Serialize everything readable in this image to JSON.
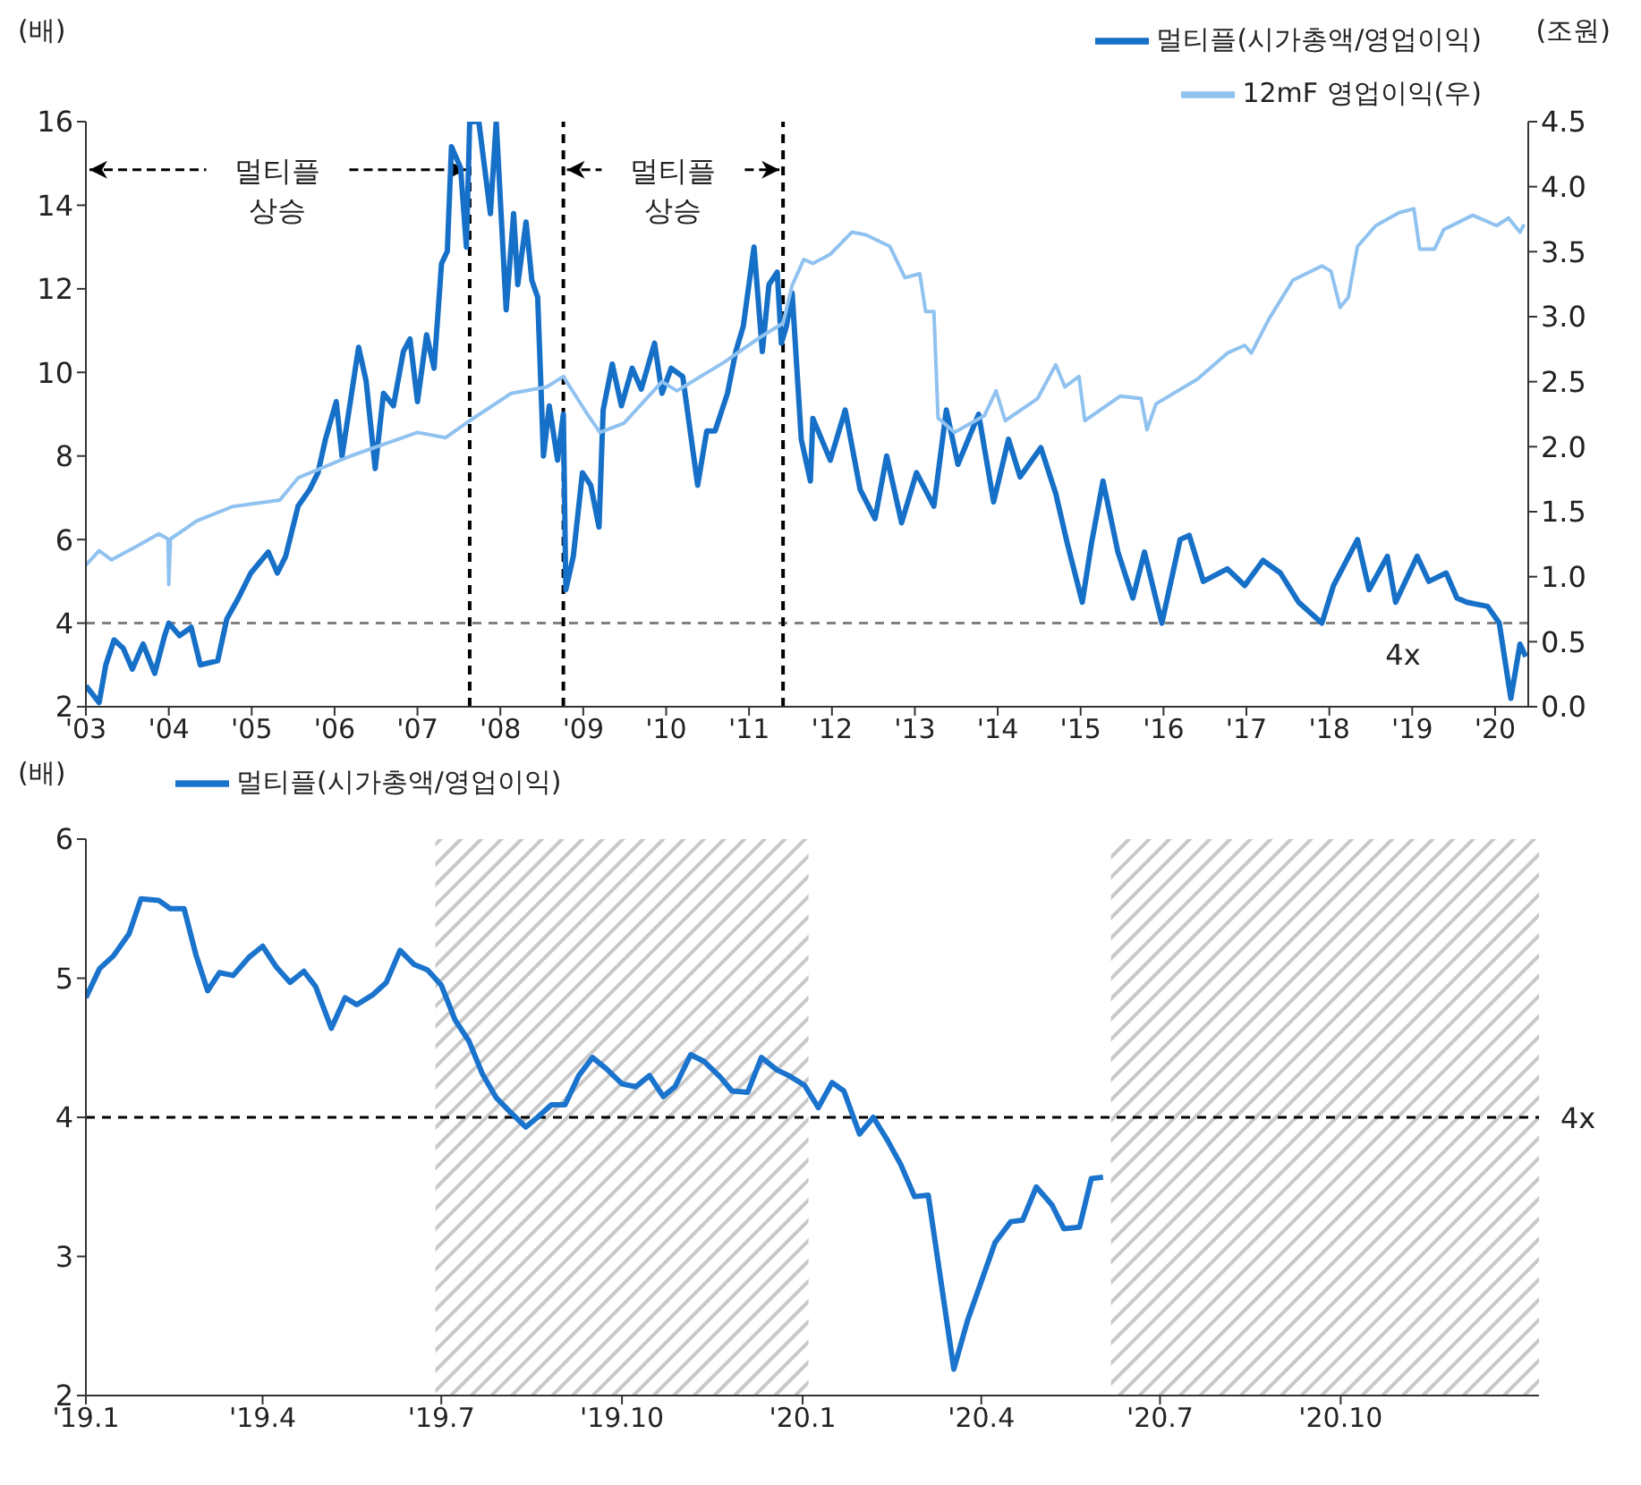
{
  "chart_data": [
    {
      "type": "line",
      "ylabel": "(배)",
      "y2label": "(조원)",
      "legend": "top right",
      "marker": "none",
      "line_style": "solid",
      "grid": false,
      "xlim": [
        2003,
        2020.4
      ],
      "xticks": [
        {
          "value": 2003,
          "label": "'03"
        },
        {
          "value": 2004,
          "label": "'04"
        },
        {
          "value": 2005,
          "label": "'05"
        },
        {
          "value": 2006,
          "label": "'06"
        },
        {
          "value": 2007,
          "label": "'07"
        },
        {
          "value": 2008,
          "label": "'08"
        },
        {
          "value": 2009,
          "label": "'09"
        },
        {
          "value": 2010,
          "label": "'10"
        },
        {
          "value": 2011,
          "label": "'11"
        },
        {
          "value": 2012,
          "label": "'12"
        },
        {
          "value": 2013,
          "label": "'13"
        },
        {
          "value": 2014,
          "label": "'14"
        },
        {
          "value": 2015,
          "label": "'15"
        },
        {
          "value": 2016,
          "label": "'16"
        },
        {
          "value": 2017,
          "label": "'17"
        },
        {
          "value": 2018,
          "label": "'18"
        },
        {
          "value": 2019,
          "label": "'19"
        },
        {
          "value": 2020,
          "label": "'20"
        }
      ],
      "ylim": [
        2,
        16
      ],
      "yticks": [
        2,
        4,
        6,
        8,
        10,
        12,
        14,
        16
      ],
      "y2lim": [
        0,
        4.5
      ],
      "y2ticks": [
        {
          "value": 0,
          "label": "0.0"
        },
        {
          "value": 0.5,
          "label": "0.5"
        },
        {
          "value": 1,
          "label": "1.0"
        },
        {
          "value": 1.5,
          "label": "1.5"
        },
        {
          "value": 2,
          "label": "2.0"
        },
        {
          "value": 2.5,
          "label": "2.5"
        },
        {
          "value": 3,
          "label": "3.0"
        },
        {
          "value": 3.5,
          "label": "3.5"
        },
        {
          "value": 4,
          "label": "4.0"
        },
        {
          "value": 4.5,
          "label": "4.5"
        }
      ],
      "series": [
        {
          "name": "멀티플(시가총액/영업이익)",
          "color": "#1670c8",
          "x": [
            2003.0,
            2003.16,
            2003.24,
            2003.34,
            2003.45,
            2003.56,
            2003.69,
            2003.83,
            2003.95,
            2004.0,
            2004.13,
            2004.27,
            2004.38,
            2004.59,
            2004.7,
            2004.84,
            2004.99,
            2005.2,
            2005.31,
            2005.41,
            2005.56,
            2005.7,
            2005.8,
            2005.89,
            2006.02,
            2006.09,
            2006.29,
            2006.38,
            2006.49,
            2006.59,
            2006.71,
            2006.83,
            2006.91,
            2007.0,
            2007.11,
            2007.2,
            2007.29,
            2007.36,
            2007.41,
            2007.52,
            2007.59,
            2007.63,
            2007.74,
            2007.88,
            2007.95,
            2008.07,
            2008.16,
            2008.21,
            2008.31,
            2008.38,
            2008.45,
            2008.52,
            2008.59,
            2008.69,
            2008.76,
            2008.79,
            2008.88,
            2008.99,
            2009.09,
            2009.19,
            2009.24,
            2009.35,
            2009.46,
            2009.59,
            2009.7,
            2009.86,
            2009.95,
            2010.06,
            2010.2,
            2010.38,
            2010.49,
            2010.59,
            2010.74,
            2010.84,
            2010.93,
            2011.06,
            2011.16,
            2011.24,
            2011.34,
            2011.39,
            2011.45,
            2011.52,
            2011.63,
            2011.74,
            2011.77,
            2011.98,
            2012.16,
            2012.34,
            2012.52,
            2012.66,
            2012.84,
            2013.02,
            2013.23,
            2013.38,
            2013.52,
            2013.77,
            2013.95,
            2014.13,
            2014.27,
            2014.52,
            2014.7,
            2014.84,
            2015.02,
            2015.13,
            2015.27,
            2015.45,
            2015.63,
            2015.77,
            2015.98,
            2016.2,
            2016.31,
            2016.48,
            2016.77,
            2016.98,
            2017.2,
            2017.41,
            2017.63,
            2017.91,
            2018.05,
            2018.34,
            2018.48,
            2018.7,
            2018.8,
            2019.06,
            2019.2,
            2019.41,
            2019.54,
            2019.66,
            2019.91,
            2020.05,
            2020.19,
            2020.3,
            2020.37
          ],
          "values": [
            2.5,
            2.1,
            3.0,
            3.6,
            3.4,
            2.9,
            3.5,
            2.8,
            3.7,
            4.0,
            3.7,
            3.9,
            3.0,
            3.1,
            4.1,
            4.6,
            5.2,
            5.7,
            5.2,
            5.6,
            6.8,
            7.2,
            7.6,
            8.4,
            9.3,
            8.0,
            10.6,
            9.8,
            7.7,
            9.5,
            9.2,
            10.5,
            10.8,
            9.3,
            10.9,
            10.1,
            12.6,
            12.9,
            15.4,
            14.9,
            13.0,
            16,
            16,
            13.8,
            16,
            11.5,
            13.8,
            12.1,
            13.6,
            12.2,
            11.8,
            8.0,
            9.2,
            7.9,
            9.0,
            4.8,
            5.6,
            7.6,
            7.3,
            6.3,
            9.1,
            10.2,
            9.2,
            10.1,
            9.6,
            10.7,
            9.5,
            10.1,
            9.9,
            7.3,
            8.6,
            8.6,
            9.5,
            10.5,
            11.1,
            13.0,
            10.5,
            12.1,
            12.4,
            10.7,
            11.1,
            11.9,
            8.4,
            7.4,
            8.9,
            7.9,
            9.1,
            7.2,
            6.5,
            8.0,
            6.4,
            7.6,
            6.8,
            9.1,
            7.8,
            9.0,
            6.9,
            8.4,
            7.5,
            8.2,
            7.1,
            5.9,
            4.5,
            5.9,
            7.4,
            5.7,
            4.6,
            5.7,
            4.0,
            6.0,
            6.1,
            5.0,
            5.3,
            4.9,
            5.5,
            5.2,
            4.5,
            4.0,
            4.9,
            6.0,
            4.8,
            5.6,
            4.5,
            5.6,
            5.0,
            5.2,
            4.6,
            4.5,
            4.4,
            4.0,
            2.2,
            3.5,
            3.2
          ]
        },
        {
          "name": "12mF 영업이익(우)",
          "color": "#90c2f0",
          "axis": "y2",
          "x": [
            2003.0,
            2003.16,
            2003.31,
            2003.63,
            2003.88,
            2003.99,
            2004.0,
            2004.02,
            2004.34,
            2004.77,
            2005.34,
            2005.56,
            2006.2,
            2007.0,
            2007.34,
            2007.63,
            2008.13,
            2008.56,
            2008.76,
            2009.06,
            2009.2,
            2009.49,
            2009.95,
            2010.13,
            2010.7,
            2011.13,
            2011.41,
            2011.52,
            2011.66,
            2011.77,
            2011.98,
            2012.24,
            2012.41,
            2012.7,
            2012.88,
            2013.06,
            2013.13,
            2013.23,
            2013.28,
            2013.48,
            2013.84,
            2013.98,
            2014.09,
            2014.48,
            2014.7,
            2014.81,
            2014.98,
            2015.05,
            2015.48,
            2015.73,
            2015.8,
            2015.91,
            2016.41,
            2016.77,
            2016.98,
            2017.06,
            2017.27,
            2017.56,
            2017.91,
            2018.02,
            2018.13,
            2018.23,
            2018.34,
            2018.56,
            2018.84,
            2019.02,
            2019.09,
            2019.27,
            2019.38,
            2019.73,
            2020.02,
            2020.16,
            2020.3,
            2020.35
          ],
          "values": [
            1.09,
            1.2,
            1.13,
            1.24,
            1.33,
            1.29,
            0.94,
            1.29,
            1.43,
            1.54,
            1.59,
            1.76,
            1.93,
            2.11,
            2.07,
            2.2,
            2.41,
            2.46,
            2.54,
            2.24,
            2.11,
            2.18,
            2.5,
            2.43,
            2.65,
            2.84,
            2.95,
            3.24,
            3.44,
            3.41,
            3.48,
            3.65,
            3.63,
            3.54,
            3.3,
            3.33,
            3.04,
            3.04,
            2.22,
            2.11,
            2.24,
            2.43,
            2.2,
            2.37,
            2.63,
            2.46,
            2.54,
            2.2,
            2.39,
            2.37,
            2.13,
            2.33,
            2.52,
            2.72,
            2.78,
            2.72,
            2.98,
            3.28,
            3.39,
            3.35,
            3.07,
            3.15,
            3.54,
            3.7,
            3.8,
            3.83,
            3.52,
            3.52,
            3.67,
            3.78,
            3.7,
            3.76,
            3.65,
            3.71
          ]
        }
      ],
      "ref_lines": [
        {
          "axis": "y",
          "value": 4,
          "label": "4x",
          "color": "#808080",
          "line_style": "dashed"
        },
        {
          "axis": "x",
          "value": 2007.63,
          "color": "#000000",
          "line_style": "dashed"
        },
        {
          "axis": "x",
          "value": 2008.76,
          "color": "#000000",
          "line_style": "dashed"
        },
        {
          "axis": "x",
          "value": 2011.41,
          "color": "#000000",
          "line_style": "dashed"
        }
      ],
      "annotations": [
        {
          "text": "멀티플\n상승",
          "x": 2007.63,
          "y": 14.85
        },
        {
          "text": "멀티플\n상승",
          "x": 2011.41,
          "y": 14.85
        }
      ]
    },
    {
      "type": "line",
      "ylabel": "(배)",
      "legend": "top left",
      "marker": "none",
      "line_style": "solid",
      "grid": false,
      "xlim": [
        "2019-01-01",
        "2021-01-10"
      ],
      "xticks": [
        {
          "value": "2019-01-01",
          "label": "'19.1"
        },
        {
          "value": "2019-04-01",
          "label": "'19.4"
        },
        {
          "value": "2019-07-01",
          "label": "'19.7"
        },
        {
          "value": "2019-10-01",
          "label": "'19.10"
        },
        {
          "value": "2020-01-01",
          "label": "'20.1"
        },
        {
          "value": "2020-04-01",
          "label": "'20.4"
        },
        {
          "value": "2020-07-01",
          "label": "'20.7"
        },
        {
          "value": "2020-10-01",
          "label": "'20.10"
        }
      ],
      "ylim": [
        2,
        6
      ],
      "yticks": [
        2,
        3,
        4,
        5,
        6
      ],
      "series": [
        {
          "name": "멀티플(시가총액/영업이익)",
          "color": "#1a73cc",
          "x": [
            "2019-01-01",
            "2019-01-08",
            "2019-01-15",
            "2019-01-23",
            "2019-01-29",
            "2019-02-07",
            "2019-02-13",
            "2019-02-20",
            "2019-02-26",
            "2019-03-04",
            "2019-03-10",
            "2019-03-17",
            "2019-03-25",
            "2019-04-01",
            "2019-04-08",
            "2019-04-15",
            "2019-04-22",
            "2019-04-28",
            "2019-05-06",
            "2019-05-13",
            "2019-05-19",
            "2019-05-27",
            "2019-06-03",
            "2019-06-10",
            "2019-06-17",
            "2019-06-24",
            "2019-07-01",
            "2019-07-08",
            "2019-07-15",
            "2019-07-22",
            "2019-07-29",
            "2019-08-05",
            "2019-08-13",
            "2019-08-19",
            "2019-08-26",
            "2019-09-02",
            "2019-09-09",
            "2019-09-16",
            "2019-09-23",
            "2019-10-01",
            "2019-10-08",
            "2019-10-15",
            "2019-10-22",
            "2019-10-28",
            "2019-11-05",
            "2019-11-12",
            "2019-11-20",
            "2019-11-26",
            "2019-12-04",
            "2019-12-11",
            "2019-12-19",
            "2019-12-25",
            "2020-01-02",
            "2020-01-09",
            "2020-01-16",
            "2020-01-22",
            "2020-01-30",
            "2020-02-06",
            "2020-02-13",
            "2020-02-20",
            "2020-02-27",
            "2020-03-05",
            "2020-03-18",
            "2020-03-25",
            "2020-04-08",
            "2020-04-16",
            "2020-04-22",
            "2020-04-29",
            "2020-05-07",
            "2020-05-13",
            "2020-05-21",
            "2020-05-27",
            "2020-06-02"
          ],
          "values": [
            4.86,
            5.07,
            5.16,
            5.32,
            5.57,
            5.56,
            5.5,
            5.5,
            5.17,
            4.91,
            5.04,
            5.02,
            5.15,
            5.23,
            5.08,
            4.97,
            5.05,
            4.94,
            4.64,
            4.86,
            4.81,
            4.88,
            4.97,
            5.2,
            5.1,
            5.06,
            4.95,
            4.7,
            4.55,
            4.31,
            4.14,
            4.04,
            3.93,
            4.0,
            4.09,
            4.09,
            4.3,
            4.43,
            4.35,
            4.24,
            4.22,
            4.3,
            4.15,
            4.22,
            4.45,
            4.4,
            4.29,
            4.19,
            4.18,
            4.43,
            4.34,
            4.3,
            4.23,
            4.07,
            4.25,
            4.19,
            3.88,
            4.0,
            3.84,
            3.66,
            3.43,
            3.44,
            2.19,
            2.54,
            3.1,
            3.25,
            3.26,
            3.5,
            3.37,
            3.2,
            3.21,
            3.56,
            3.57
          ]
        }
      ],
      "ref_lines": [
        {
          "axis": "y",
          "value": 4,
          "label": "4x",
          "color": "#000000",
          "line_style": "dashed"
        }
      ],
      "bands": [
        {
          "axis": "x",
          "from": "2019-06-28",
          "to": "2020-01-04",
          "color": "#c8c8c8"
        },
        {
          "axis": "x",
          "from": "2020-06-06",
          "to": "2021-01-10",
          "color": "#c8c8c8"
        }
      ]
    }
  ]
}
